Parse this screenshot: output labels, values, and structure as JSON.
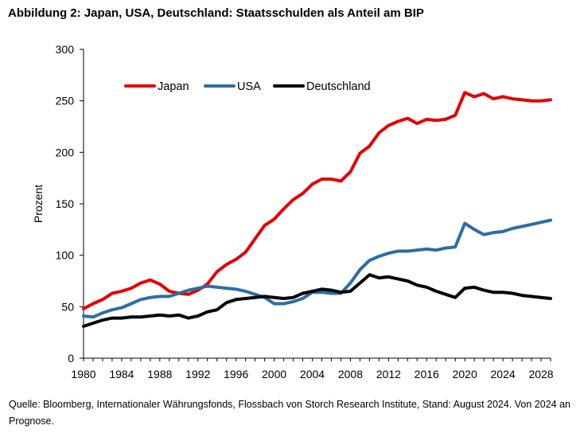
{
  "title": "Abbildung 2: Japan, USA, Deutschland: Staatsschulden als Anteil am BIP",
  "source": "Quelle: Bloomberg, Internationaler Währungsfonds, Flossbach von Storch Research Institute, Stand: August 2024. Von 2024 an Prognose.",
  "chart_data": {
    "type": "line",
    "title": "Abbildung 2: Japan, USA, Deutschland: Staatsschulden als Anteil am BIP",
    "xlabel": "",
    "ylabel": "Prozent",
    "xlim": [
      1980,
      2029
    ],
    "ylim": [
      0,
      300
    ],
    "y_ticks": [
      0,
      50,
      100,
      150,
      200,
      250,
      300
    ],
    "x_ticks": [
      1980,
      1984,
      1988,
      1992,
      1996,
      2000,
      2004,
      2008,
      2012,
      2016,
      2020,
      2024,
      2028
    ],
    "grid": false,
    "legend": "top-left",
    "x": [
      1980,
      1981,
      1982,
      1983,
      1984,
      1985,
      1986,
      1987,
      1988,
      1989,
      1990,
      1991,
      1992,
      1993,
      1994,
      1995,
      1996,
      1997,
      1998,
      1999,
      2000,
      2001,
      2002,
      2003,
      2004,
      2005,
      2006,
      2007,
      2008,
      2009,
      2010,
      2011,
      2012,
      2013,
      2014,
      2015,
      2016,
      2017,
      2018,
      2019,
      2020,
      2021,
      2022,
      2023,
      2024,
      2025,
      2026,
      2027,
      2028,
      2029
    ],
    "series": [
      {
        "name": "Japan",
        "color": "#e50000",
        "values": [
          48,
          53,
          57,
          63,
          65,
          68,
          73,
          76,
          72,
          65,
          63,
          62,
          66,
          72,
          84,
          91,
          96,
          103,
          116,
          129,
          135,
          145,
          154,
          160,
          169,
          174,
          174,
          172,
          181,
          199,
          206,
          219,
          226,
          230,
          233,
          228,
          232,
          231,
          232,
          236,
          258,
          254,
          257,
          252,
          254,
          252,
          251,
          250,
          250,
          251
        ]
      },
      {
        "name": "USA",
        "color": "#2e6da4",
        "values": [
          41,
          40,
          44,
          47,
          49,
          53,
          57,
          59,
          60,
          60,
          63,
          66,
          68,
          70,
          69,
          68,
          67,
          65,
          62,
          59,
          53,
          53,
          55,
          58,
          64,
          64,
          63,
          63,
          73,
          86,
          95,
          99,
          102,
          104,
          104,
          105,
          106,
          105,
          107,
          108,
          131,
          125,
          120,
          122,
          123,
          126,
          128,
          130,
          132,
          134
        ]
      },
      {
        "name": "Deutschland",
        "color": "#000000",
        "values": [
          31,
          34,
          37,
          39,
          39,
          40,
          40,
          41,
          42,
          41,
          42,
          39,
          41,
          45,
          47,
          54,
          57,
          58,
          59,
          60,
          59,
          58,
          59,
          63,
          65,
          67,
          66,
          64,
          65,
          73,
          81,
          78,
          79,
          77,
          75,
          71,
          69,
          65,
          62,
          59,
          68,
          69,
          66,
          64,
          64,
          63,
          61,
          60,
          59,
          58
        ]
      }
    ]
  }
}
